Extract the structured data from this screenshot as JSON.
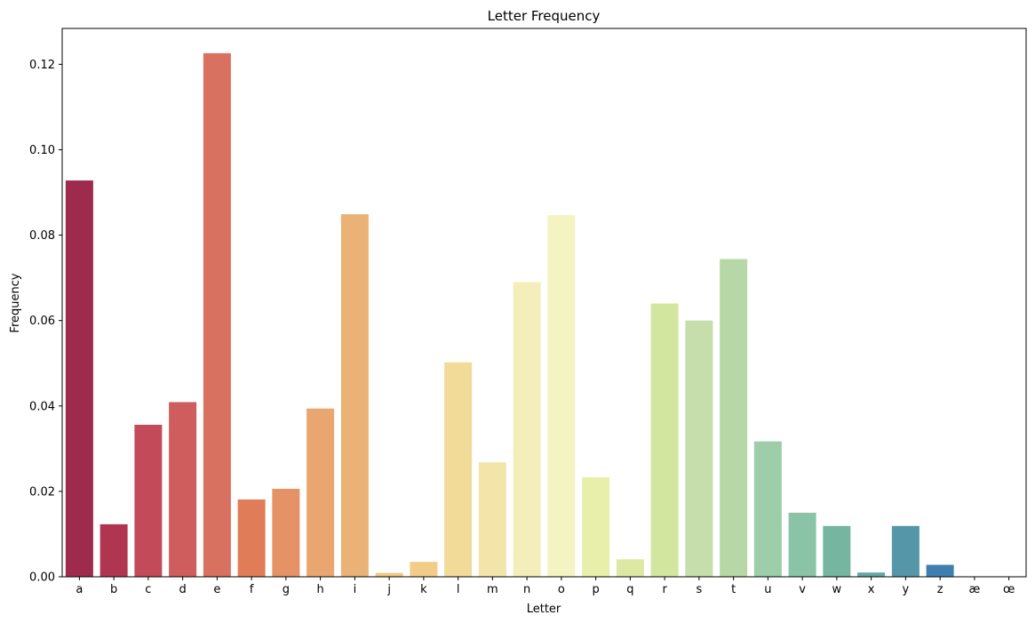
{
  "chart_data": {
    "type": "bar",
    "title": "Letter Frequency",
    "xlabel": "Letter",
    "ylabel": "Frequency",
    "ylim": [
      0,
      0.1284
    ],
    "yticks": [
      0.0,
      0.02,
      0.04,
      0.06,
      0.08,
      0.1,
      0.12
    ],
    "ytick_labels": [
      "0.00",
      "0.02",
      "0.04",
      "0.06",
      "0.08",
      "0.10",
      "0.12"
    ],
    "grid": false,
    "categories": [
      "a",
      "b",
      "c",
      "d",
      "e",
      "f",
      "g",
      "h",
      "i",
      "j",
      "k",
      "l",
      "m",
      "n",
      "o",
      "p",
      "q",
      "r",
      "s",
      "t",
      "u",
      "v",
      "w",
      "x",
      "y",
      "z",
      "æ",
      "œ"
    ],
    "values": [
      0.0928,
      0.0123,
      0.0356,
      0.0409,
      0.1226,
      0.0181,
      0.0206,
      0.0394,
      0.0849,
      0.0009,
      0.0035,
      0.0502,
      0.0268,
      0.069,
      0.0847,
      0.0233,
      0.0041,
      0.064,
      0.06,
      0.0744,
      0.0317,
      0.015,
      0.0119,
      0.001,
      0.0119,
      0.0028,
      0.0,
      0.0
    ],
    "colors": [
      "#9e2a4e",
      "#b0364f",
      "#c24a59",
      "#cf5d5d",
      "#d97160",
      "#e07d58",
      "#e59366",
      "#e9a66f",
      "#eab277",
      "#f0c680",
      "#f2cc88",
      "#f2da98",
      "#f3e4aa",
      "#f4eebb",
      "#f3f4c2",
      "#e8efaa",
      "#dde9a3",
      "#d3e6a0",
      "#c5deab",
      "#b7d8a6",
      "#9dcea9",
      "#8ac3a6",
      "#76b5a0",
      "#65a7a4",
      "#5597a8",
      "#3f7fb0",
      "#4a74b6",
      "#5a5fa9"
    ]
  }
}
